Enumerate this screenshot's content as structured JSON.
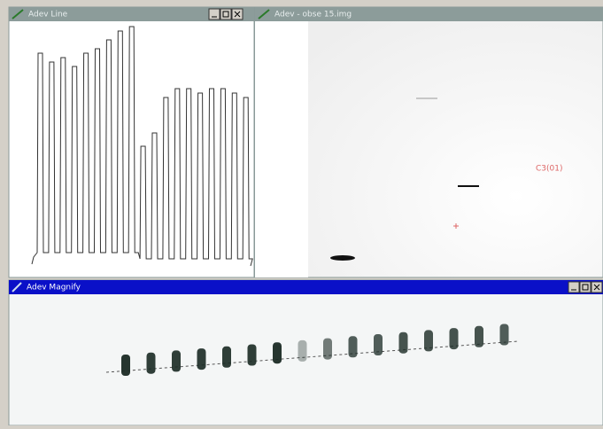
{
  "windows": [
    {
      "title": "Adev Line"
    },
    {
      "title": "Adev - obse 15.img",
      "label": "C3(01)"
    },
    {
      "title": "Adev Magnify"
    }
  ]
}
